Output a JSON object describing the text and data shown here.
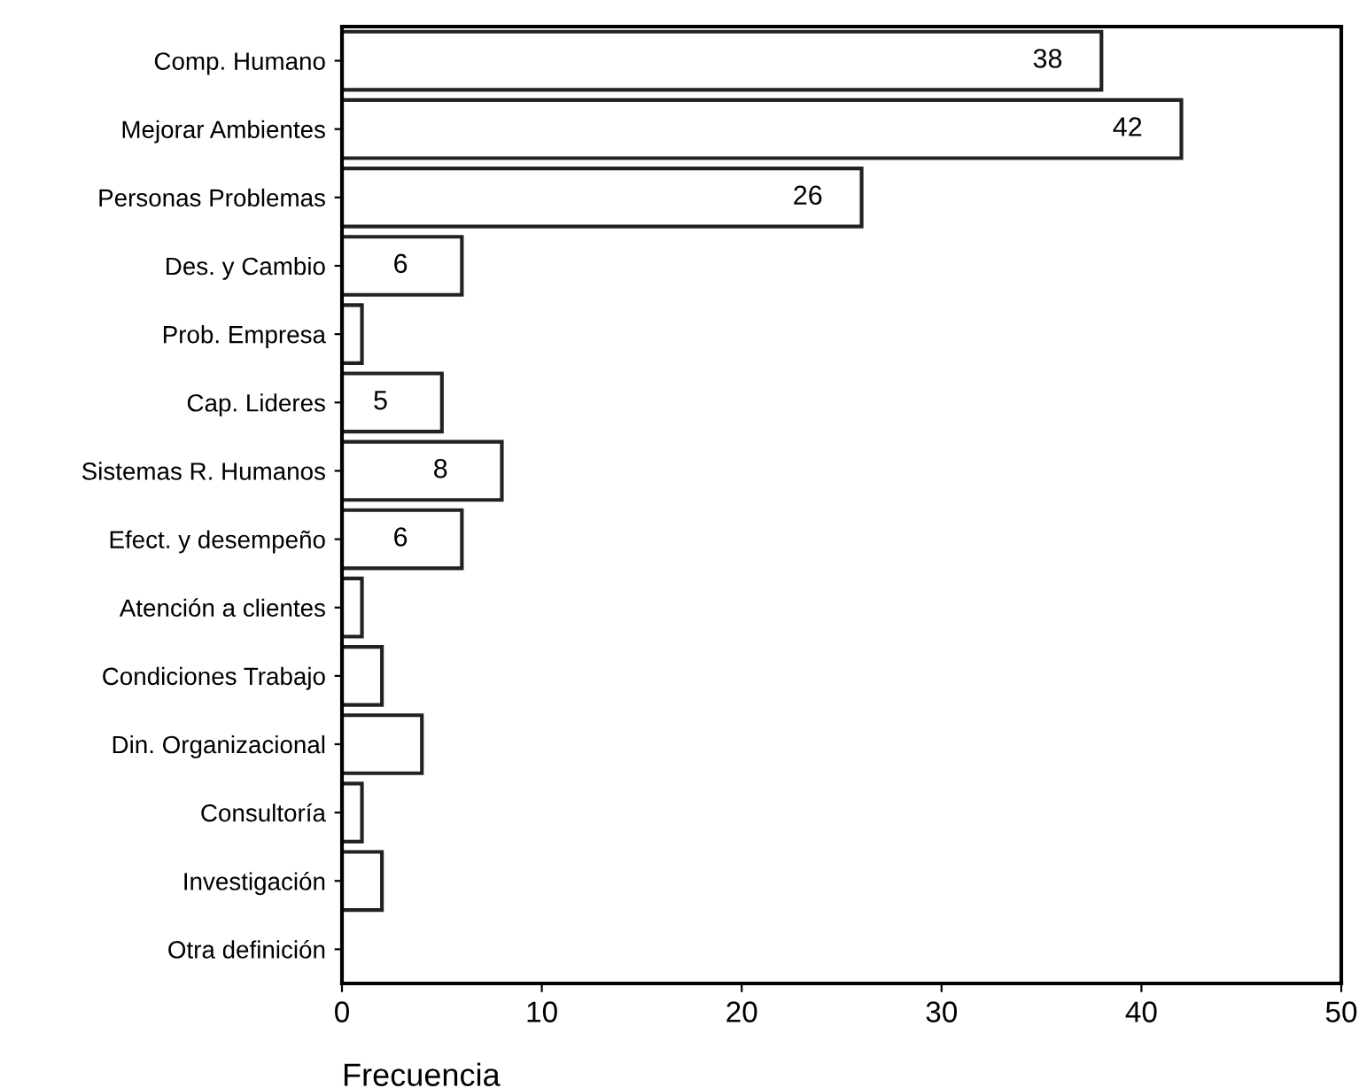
{
  "chart_data": {
    "type": "bar",
    "orientation": "horizontal",
    "xlabel": "Frecuencia",
    "categories": [
      "Comp. Humano",
      "Mejorar Ambientes",
      "Personas Problemas",
      "Des. y Cambio",
      "Prob. Empresa",
      "Cap. Lideres",
      "Sistemas R. Humanos",
      "Efect. y desempeño",
      "Atención a clientes",
      "Condiciones Trabajo",
      "Din. Organizacional",
      "Consultoría",
      "Investigación",
      "Otra definición"
    ],
    "values": [
      38,
      42,
      26,
      6,
      1,
      5,
      8,
      6,
      1,
      2,
      4,
      1,
      2,
      0
    ],
    "value_labels": [
      "38",
      "42",
      "26",
      "6",
      null,
      "5",
      "8",
      "6",
      null,
      null,
      null,
      null,
      null,
      null
    ],
    "color": "#ffffff",
    "xlim": [
      0,
      50
    ],
    "xticks": [
      0,
      10,
      20,
      30,
      40,
      50
    ],
    "grid": false,
    "legend": false
  }
}
